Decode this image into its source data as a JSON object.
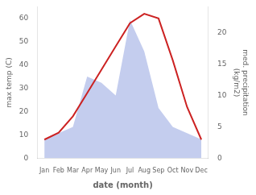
{
  "chart_data": {
    "type": "line",
    "categories": [
      "Jan",
      "Feb",
      "Mar",
      "Apr",
      "May",
      "Jun",
      "Jul",
      "Aug",
      "Sep",
      "Oct",
      "Nov",
      "Dec"
    ],
    "series": [
      {
        "type": "area",
        "axis": "y2",
        "color": "#b0bce8",
        "values": [
          3,
          4,
          5,
          13,
          12,
          10,
          22,
          17,
          8,
          5,
          4,
          3
        ]
      },
      {
        "type": "line",
        "color": "#cc2222",
        "values": [
          8,
          11,
          18,
          28,
          38,
          48,
          58,
          62,
          60,
          42,
          22,
          8
        ]
      }
    ],
    "xlabel": "date (month)",
    "ylabel": "max temp (C)",
    "y2label": "med. precipitation\n(kg/m2)",
    "ylim": [
      0,
      65
    ],
    "yticks": [
      0,
      10,
      20,
      30,
      40,
      50,
      60
    ],
    "y2lim": [
      0,
      24.1
    ],
    "y2ticks": [
      0,
      5,
      10,
      15,
      20
    ],
    "grid": false
  }
}
